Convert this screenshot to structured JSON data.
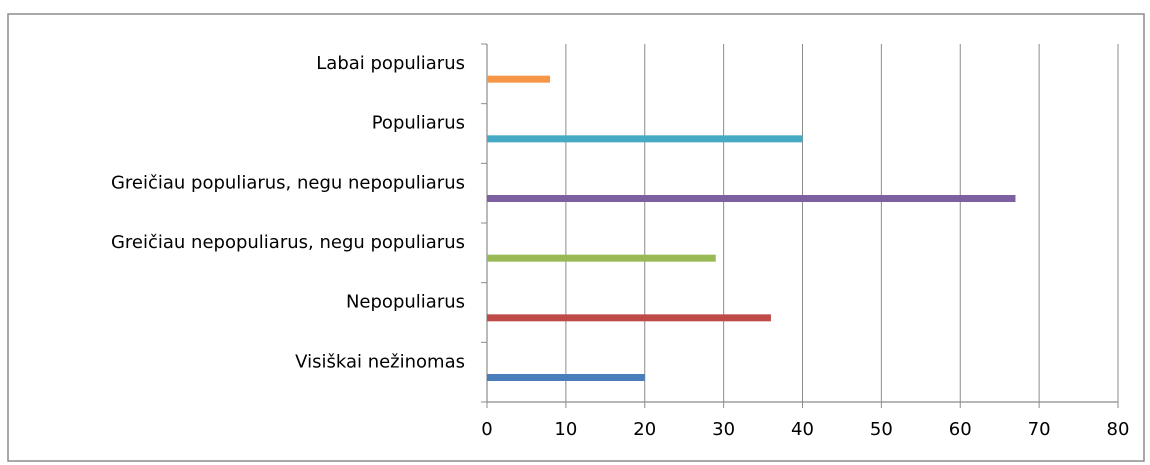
{
  "chart_data": {
    "type": "bar",
    "orientation": "horizontal",
    "title": "",
    "xlabel": "",
    "ylabel": "",
    "categories": [
      "Visiškai nežinomas",
      "Nepopuliarus",
      "Greičiau nepopuliarus, negu populiarus",
      "Greičiau populiarus, negu nepopuliarus",
      "Populiarus",
      "Labai populiarus"
    ],
    "values": [
      20,
      36,
      29,
      67,
      40,
      8
    ],
    "colors": [
      "#4a7ebb",
      "#be4b48",
      "#98b954",
      "#7d60a0",
      "#46aac5",
      "#f79646"
    ],
    "xlim": [
      0,
      80
    ],
    "xticks": [
      0,
      10,
      20,
      30,
      40,
      50,
      60,
      70,
      80
    ],
    "grid": "vertical",
    "legend": "none"
  }
}
